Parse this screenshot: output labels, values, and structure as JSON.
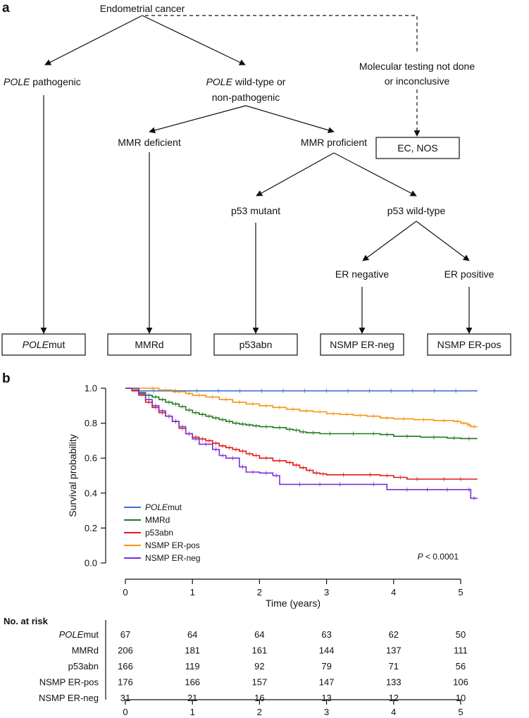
{
  "panel_a": {
    "letter": "a",
    "root": "Endometrial cancer",
    "pole_path_prefix": "POLE",
    "pole_path_suffix": " pathogenic",
    "pole_wt_line1_prefix": "POLE",
    "pole_wt_line1_suffix": " wild-type or",
    "pole_wt_line2": "non-pathogenic",
    "untested_line1": "Molecular testing not done",
    "untested_line2": "or inconclusive",
    "ec_nos": "EC, NOS",
    "mmr_deficient": "MMR deficient",
    "mmr_proficient": "MMR proficient",
    "p53_mutant": "p53 mutant",
    "p53_wildtype": "p53 wild-type",
    "er_negative": "ER negative",
    "er_positive": "ER positive",
    "box_polemut_prefix": "POLE",
    "box_polemut_suffix": "mut",
    "box_mmrd": "MMRd",
    "box_p53abn": "p53abn",
    "box_nsmp_neg": "NSMP ER-neg",
    "box_nsmp_pos": "NSMP ER-pos"
  },
  "panel_b": {
    "letter": "b"
  },
  "chart_data": {
    "type": "line",
    "subtype": "kaplan-meier",
    "xlabel": "Time (years)",
    "ylabel": "Survival probability",
    "xlim": [
      0,
      5.25
    ],
    "ylim": [
      0,
      1
    ],
    "x_ticks": [
      0,
      1,
      2,
      3,
      4,
      5
    ],
    "y_ticks": [
      "0.0",
      "0.2",
      "0.4",
      "0.6",
      "0.8",
      "1.0"
    ],
    "annotation_p_italic": "P",
    "annotation_p_rest": " < 0.0001",
    "legend_position": "bottom-left",
    "series": [
      {
        "name": "POLEmut",
        "name_italic": "POLE",
        "name_rest": "mut",
        "color": "#3a6fd8",
        "points": [
          [
            0,
            1
          ],
          [
            0.05,
            1
          ],
          [
            0.1,
            0.985
          ],
          [
            5.25,
            0.985
          ]
        ]
      },
      {
        "name": "MMRd",
        "name_italic": "",
        "name_rest": "MMRd",
        "color": "#1d7a1d",
        "points": [
          [
            0,
            1
          ],
          [
            0.1,
            0.99
          ],
          [
            0.2,
            0.975
          ],
          [
            0.3,
            0.96
          ],
          [
            0.4,
            0.95
          ],
          [
            0.5,
            0.935
          ],
          [
            0.6,
            0.92
          ],
          [
            0.7,
            0.91
          ],
          [
            0.8,
            0.895
          ],
          [
            0.9,
            0.875
          ],
          [
            1.0,
            0.86
          ],
          [
            1.1,
            0.85
          ],
          [
            1.2,
            0.84
          ],
          [
            1.3,
            0.83
          ],
          [
            1.4,
            0.82
          ],
          [
            1.5,
            0.81
          ],
          [
            1.6,
            0.8
          ],
          [
            1.7,
            0.795
          ],
          [
            1.8,
            0.79
          ],
          [
            1.9,
            0.785
          ],
          [
            2.0,
            0.78
          ],
          [
            2.2,
            0.775
          ],
          [
            2.4,
            0.765
          ],
          [
            2.5,
            0.76
          ],
          [
            2.6,
            0.75
          ],
          [
            2.7,
            0.745
          ],
          [
            2.9,
            0.74
          ],
          [
            3.2,
            0.74
          ],
          [
            3.6,
            0.74
          ],
          [
            3.8,
            0.735
          ],
          [
            4.0,
            0.725
          ],
          [
            4.4,
            0.72
          ],
          [
            4.8,
            0.715
          ],
          [
            5.0,
            0.712
          ],
          [
            5.25,
            0.712
          ]
        ]
      },
      {
        "name": "p53abn",
        "name_italic": "",
        "name_rest": "p53abn",
        "color": "#e01818",
        "points": [
          [
            0,
            1
          ],
          [
            0.1,
            0.985
          ],
          [
            0.2,
            0.96
          ],
          [
            0.3,
            0.92
          ],
          [
            0.4,
            0.89
          ],
          [
            0.5,
            0.86
          ],
          [
            0.6,
            0.84
          ],
          [
            0.7,
            0.81
          ],
          [
            0.8,
            0.77
          ],
          [
            0.9,
            0.74
          ],
          [
            1.0,
            0.72
          ],
          [
            1.1,
            0.71
          ],
          [
            1.2,
            0.7
          ],
          [
            1.3,
            0.685
          ],
          [
            1.4,
            0.67
          ],
          [
            1.5,
            0.66
          ],
          [
            1.6,
            0.65
          ],
          [
            1.7,
            0.64
          ],
          [
            1.8,
            0.625
          ],
          [
            1.9,
            0.615
          ],
          [
            2.0,
            0.6
          ],
          [
            2.2,
            0.585
          ],
          [
            2.4,
            0.575
          ],
          [
            2.5,
            0.56
          ],
          [
            2.6,
            0.545
          ],
          [
            2.7,
            0.53
          ],
          [
            2.8,
            0.515
          ],
          [
            2.9,
            0.51
          ],
          [
            3.0,
            0.505
          ],
          [
            3.5,
            0.505
          ],
          [
            3.8,
            0.5
          ],
          [
            4.0,
            0.49
          ],
          [
            4.2,
            0.48
          ],
          [
            4.5,
            0.48
          ],
          [
            5.25,
            0.48
          ]
        ]
      },
      {
        "name": "NSMP ER-pos",
        "name_italic": "",
        "name_rest": "NSMP ER-pos",
        "color": "#f5930f",
        "points": [
          [
            0,
            1
          ],
          [
            0.3,
            1
          ],
          [
            0.5,
            0.99
          ],
          [
            0.7,
            0.98
          ],
          [
            0.9,
            0.97
          ],
          [
            1.0,
            0.96
          ],
          [
            1.2,
            0.95
          ],
          [
            1.4,
            0.935
          ],
          [
            1.6,
            0.92
          ],
          [
            1.8,
            0.91
          ],
          [
            2.0,
            0.9
          ],
          [
            2.2,
            0.89
          ],
          [
            2.4,
            0.88
          ],
          [
            2.6,
            0.87
          ],
          [
            2.8,
            0.865
          ],
          [
            3.0,
            0.855
          ],
          [
            3.2,
            0.85
          ],
          [
            3.4,
            0.845
          ],
          [
            3.6,
            0.84
          ],
          [
            3.8,
            0.83
          ],
          [
            4.0,
            0.825
          ],
          [
            4.3,
            0.82
          ],
          [
            4.6,
            0.815
          ],
          [
            4.9,
            0.81
          ],
          [
            5.0,
            0.8
          ],
          [
            5.1,
            0.79
          ],
          [
            5.15,
            0.78
          ],
          [
            5.25,
            0.78
          ]
        ]
      },
      {
        "name": "NSMP ER-neg",
        "name_italic": "",
        "name_rest": "NSMP ER-neg",
        "color": "#7b2fd4",
        "points": [
          [
            0,
            1
          ],
          [
            0.2,
            0.968
          ],
          [
            0.3,
            0.935
          ],
          [
            0.4,
            0.9
          ],
          [
            0.5,
            0.87
          ],
          [
            0.6,
            0.84
          ],
          [
            0.7,
            0.81
          ],
          [
            0.8,
            0.78
          ],
          [
            0.9,
            0.74
          ],
          [
            1.0,
            0.71
          ],
          [
            1.1,
            0.68
          ],
          [
            1.3,
            0.65
          ],
          [
            1.4,
            0.615
          ],
          [
            1.5,
            0.6
          ],
          [
            1.7,
            0.55
          ],
          [
            1.8,
            0.52
          ],
          [
            2.0,
            0.515
          ],
          [
            2.2,
            0.5
          ],
          [
            2.3,
            0.45
          ],
          [
            3.5,
            0.45
          ],
          [
            3.9,
            0.42
          ],
          [
            5.1,
            0.42
          ],
          [
            5.15,
            0.37
          ],
          [
            5.25,
            0.37
          ]
        ]
      }
    ],
    "at_risk": {
      "title": "No. at risk",
      "times": [
        0,
        1,
        2,
        3,
        4,
        5
      ],
      "rows": [
        {
          "label_italic": "POLE",
          "label_rest": "mut",
          "counts": [
            67,
            64,
            64,
            63,
            62,
            50
          ]
        },
        {
          "label_italic": "",
          "label_rest": "MMRd",
          "counts": [
            206,
            181,
            161,
            144,
            137,
            111
          ]
        },
        {
          "label_italic": "",
          "label_rest": "p53abn",
          "counts": [
            166,
            119,
            92,
            79,
            71,
            56
          ]
        },
        {
          "label_italic": "",
          "label_rest": "NSMP ER-pos",
          "counts": [
            176,
            166,
            157,
            147,
            133,
            106
          ]
        },
        {
          "label_italic": "",
          "label_rest": "NSMP ER-neg",
          "counts": [
            31,
            21,
            16,
            13,
            12,
            10
          ]
        }
      ]
    }
  }
}
